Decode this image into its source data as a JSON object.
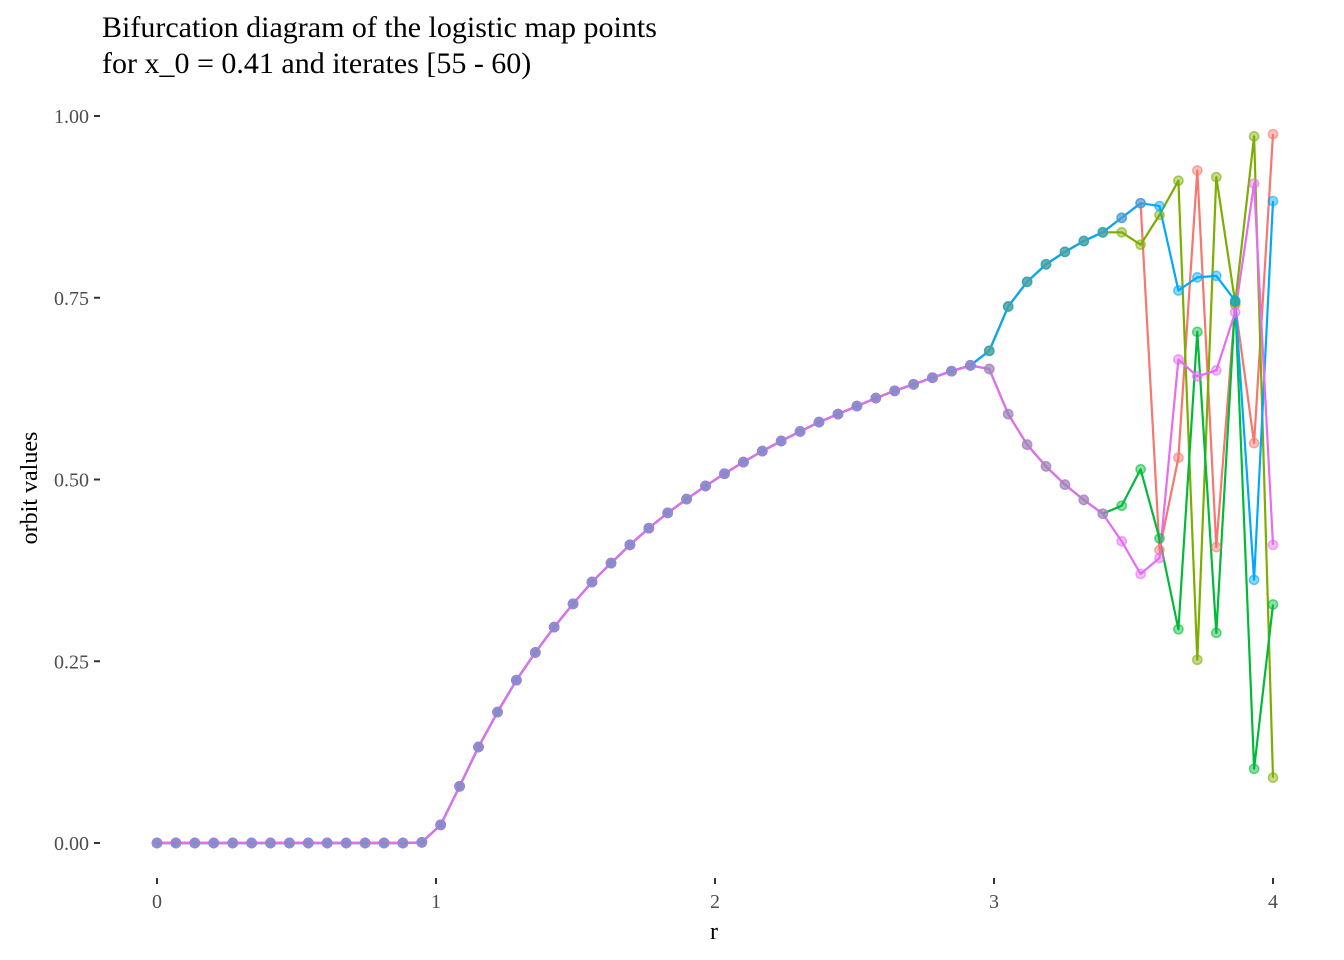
{
  "chart_data": {
    "type": "line",
    "title_lines": [
      "Bifurcation diagram of the logistic map points",
      "for x_0 = 0.41 and iterates [55 - 60)"
    ],
    "xlabel": "r",
    "ylabel": "orbit values",
    "xlim": [
      0,
      4
    ],
    "ylim": [
      0,
      1
    ],
    "xticks": [
      0,
      1,
      2,
      3,
      4
    ],
    "xtick_labels": [
      "0",
      "1",
      "2",
      "3",
      "4"
    ],
    "yticks": [
      0,
      0.25,
      0.5,
      0.75,
      1
    ],
    "ytick_labels": [
      "0.00",
      "0.25",
      "0.50",
      "0.75",
      "1.00"
    ],
    "grid": false,
    "legend": "none",
    "markers": true,
    "x": [
      0,
      0.0678,
      0.1356,
      0.2034,
      0.2712,
      0.339,
      0.4068,
      0.4746,
      0.5424,
      0.6102,
      0.678,
      0.7458,
      0.8136,
      0.8814,
      0.9492,
      1.0169,
      1.0847,
      1.1525,
      1.2203,
      1.2881,
      1.3559,
      1.4237,
      1.4915,
      1.5593,
      1.6271,
      1.6949,
      1.7627,
      1.8305,
      1.8983,
      1.9661,
      2.0339,
      2.1017,
      2.1695,
      2.2373,
      2.3051,
      2.3729,
      2.4407,
      2.5085,
      2.5763,
      2.6441,
      2.7119,
      2.7797,
      2.8475,
      2.9153,
      2.9831,
      3.0508,
      3.1186,
      3.1864,
      3.2542,
      3.322,
      3.3898,
      3.4576,
      3.5254,
      3.5932,
      3.661,
      3.7288,
      3.7966,
      3.8644,
      3.9322,
      4.0
    ],
    "series": [
      {
        "color": "#F8766D",
        "values": [
          0,
          0,
          0,
          0,
          0,
          0,
          0,
          0,
          0,
          0,
          0,
          0,
          0,
          0,
          0.001,
          0.025,
          0.078,
          0.132,
          0.18,
          0.224,
          0.262,
          0.297,
          0.329,
          0.359,
          0.385,
          0.41,
          0.433,
          0.454,
          0.473,
          0.491,
          0.508,
          0.524,
          0.539,
          0.553,
          0.566,
          0.579,
          0.59,
          0.601,
          0.612,
          0.622,
          0.631,
          0.64,
          0.649,
          0.657,
          0.677,
          0.738,
          0.772,
          0.796,
          0.813,
          0.828,
          0.84,
          0.86,
          0.88,
          0.403,
          0.53,
          0.925,
          0.407,
          0.74,
          0.55,
          0.975
        ]
      },
      {
        "color": "#7CAE00",
        "values": [
          0,
          0,
          0,
          0,
          0,
          0,
          0,
          0,
          0,
          0,
          0,
          0,
          0,
          0,
          0.001,
          0.025,
          0.078,
          0.132,
          0.18,
          0.224,
          0.262,
          0.297,
          0.329,
          0.359,
          0.385,
          0.41,
          0.433,
          0.454,
          0.473,
          0.491,
          0.508,
          0.524,
          0.539,
          0.553,
          0.566,
          0.579,
          0.59,
          0.601,
          0.612,
          0.622,
          0.631,
          0.64,
          0.649,
          0.657,
          0.677,
          0.738,
          0.772,
          0.796,
          0.813,
          0.828,
          0.84,
          0.84,
          0.823,
          0.864,
          0.911,
          0.252,
          0.916,
          0.743,
          0.972,
          0.09
        ]
      },
      {
        "color": "#00BA38",
        "values": [
          0,
          0,
          0,
          0,
          0,
          0,
          0,
          0,
          0,
          0,
          0,
          0,
          0,
          0,
          0.001,
          0.025,
          0.078,
          0.132,
          0.18,
          0.224,
          0.262,
          0.297,
          0.329,
          0.359,
          0.385,
          0.41,
          0.433,
          0.454,
          0.473,
          0.491,
          0.508,
          0.524,
          0.539,
          0.553,
          0.566,
          0.579,
          0.59,
          0.601,
          0.612,
          0.622,
          0.631,
          0.64,
          0.649,
          0.657,
          0.652,
          0.59,
          0.548,
          0.518,
          0.493,
          0.472,
          0.453,
          0.464,
          0.514,
          0.419,
          0.294,
          0.703,
          0.289,
          0.745,
          0.102,
          0.328
        ]
      },
      {
        "color": "#00A9FF",
        "values": [
          0,
          0,
          0,
          0,
          0,
          0,
          0,
          0,
          0,
          0,
          0,
          0,
          0,
          0,
          0.001,
          0.025,
          0.078,
          0.132,
          0.18,
          0.224,
          0.262,
          0.297,
          0.329,
          0.359,
          0.385,
          0.41,
          0.433,
          0.454,
          0.473,
          0.491,
          0.508,
          0.524,
          0.539,
          0.553,
          0.566,
          0.579,
          0.59,
          0.601,
          0.612,
          0.622,
          0.631,
          0.64,
          0.649,
          0.657,
          0.677,
          0.738,
          0.772,
          0.796,
          0.813,
          0.828,
          0.84,
          0.86,
          0.88,
          0.876,
          0.76,
          0.778,
          0.78,
          0.746,
          0.362,
          0.883
        ]
      },
      {
        "color": "#E76BF3",
        "values": [
          0,
          0,
          0,
          0,
          0,
          0,
          0,
          0,
          0,
          0,
          0,
          0,
          0,
          0,
          0.001,
          0.025,
          0.078,
          0.132,
          0.18,
          0.224,
          0.262,
          0.297,
          0.329,
          0.359,
          0.385,
          0.41,
          0.433,
          0.454,
          0.473,
          0.491,
          0.508,
          0.524,
          0.539,
          0.553,
          0.566,
          0.579,
          0.59,
          0.601,
          0.612,
          0.622,
          0.631,
          0.64,
          0.649,
          0.657,
          0.652,
          0.59,
          0.548,
          0.518,
          0.493,
          0.472,
          0.453,
          0.415,
          0.37,
          0.392,
          0.665,
          0.642,
          0.65,
          0.73,
          0.907,
          0.41
        ]
      }
    ]
  }
}
